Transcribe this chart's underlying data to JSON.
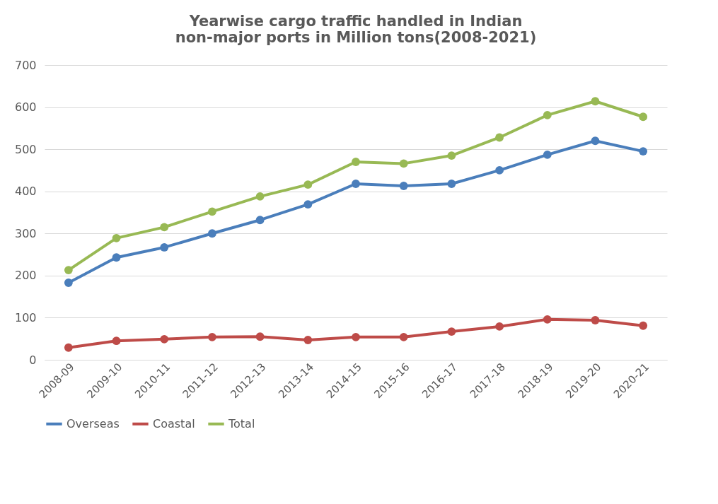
{
  "chart_data": {
    "type": "line",
    "title": "Yearwise  cargo traffic handled in Indian non-major ports in Million tons(2008-2021)",
    "categories": [
      "2008-09",
      "2009-10",
      "2010-11",
      "2011-12",
      "2012-13",
      "2013-14",
      "2014-15",
      "2015-16",
      "2016-17",
      "2017-18",
      "2018-19",
      "2019-20",
      "2020-21"
    ],
    "series": [
      {
        "name": "Overseas",
        "color": "#4a7ebb",
        "values": [
          183,
          243,
          267,
          300,
          332,
          369,
          418,
          413,
          418,
          450,
          487,
          520,
          495
        ]
      },
      {
        "name": "Coastal",
        "color": "#be4b48",
        "values": [
          29,
          45,
          49,
          54,
          55,
          47,
          54,
          54,
          67,
          79,
          96,
          94,
          81
        ]
      },
      {
        "name": "Total",
        "color": "#98b954",
        "values": [
          213,
          289,
          315,
          352,
          388,
          416,
          470,
          466,
          485,
          528,
          581,
          614,
          577
        ]
      }
    ],
    "ylim": [
      0,
      700
    ],
    "yticks": [
      0,
      100,
      200,
      300,
      400,
      500,
      600,
      700
    ],
    "grid": "y",
    "legend": "bottom",
    "marker": "circle",
    "line_style": "solid"
  }
}
